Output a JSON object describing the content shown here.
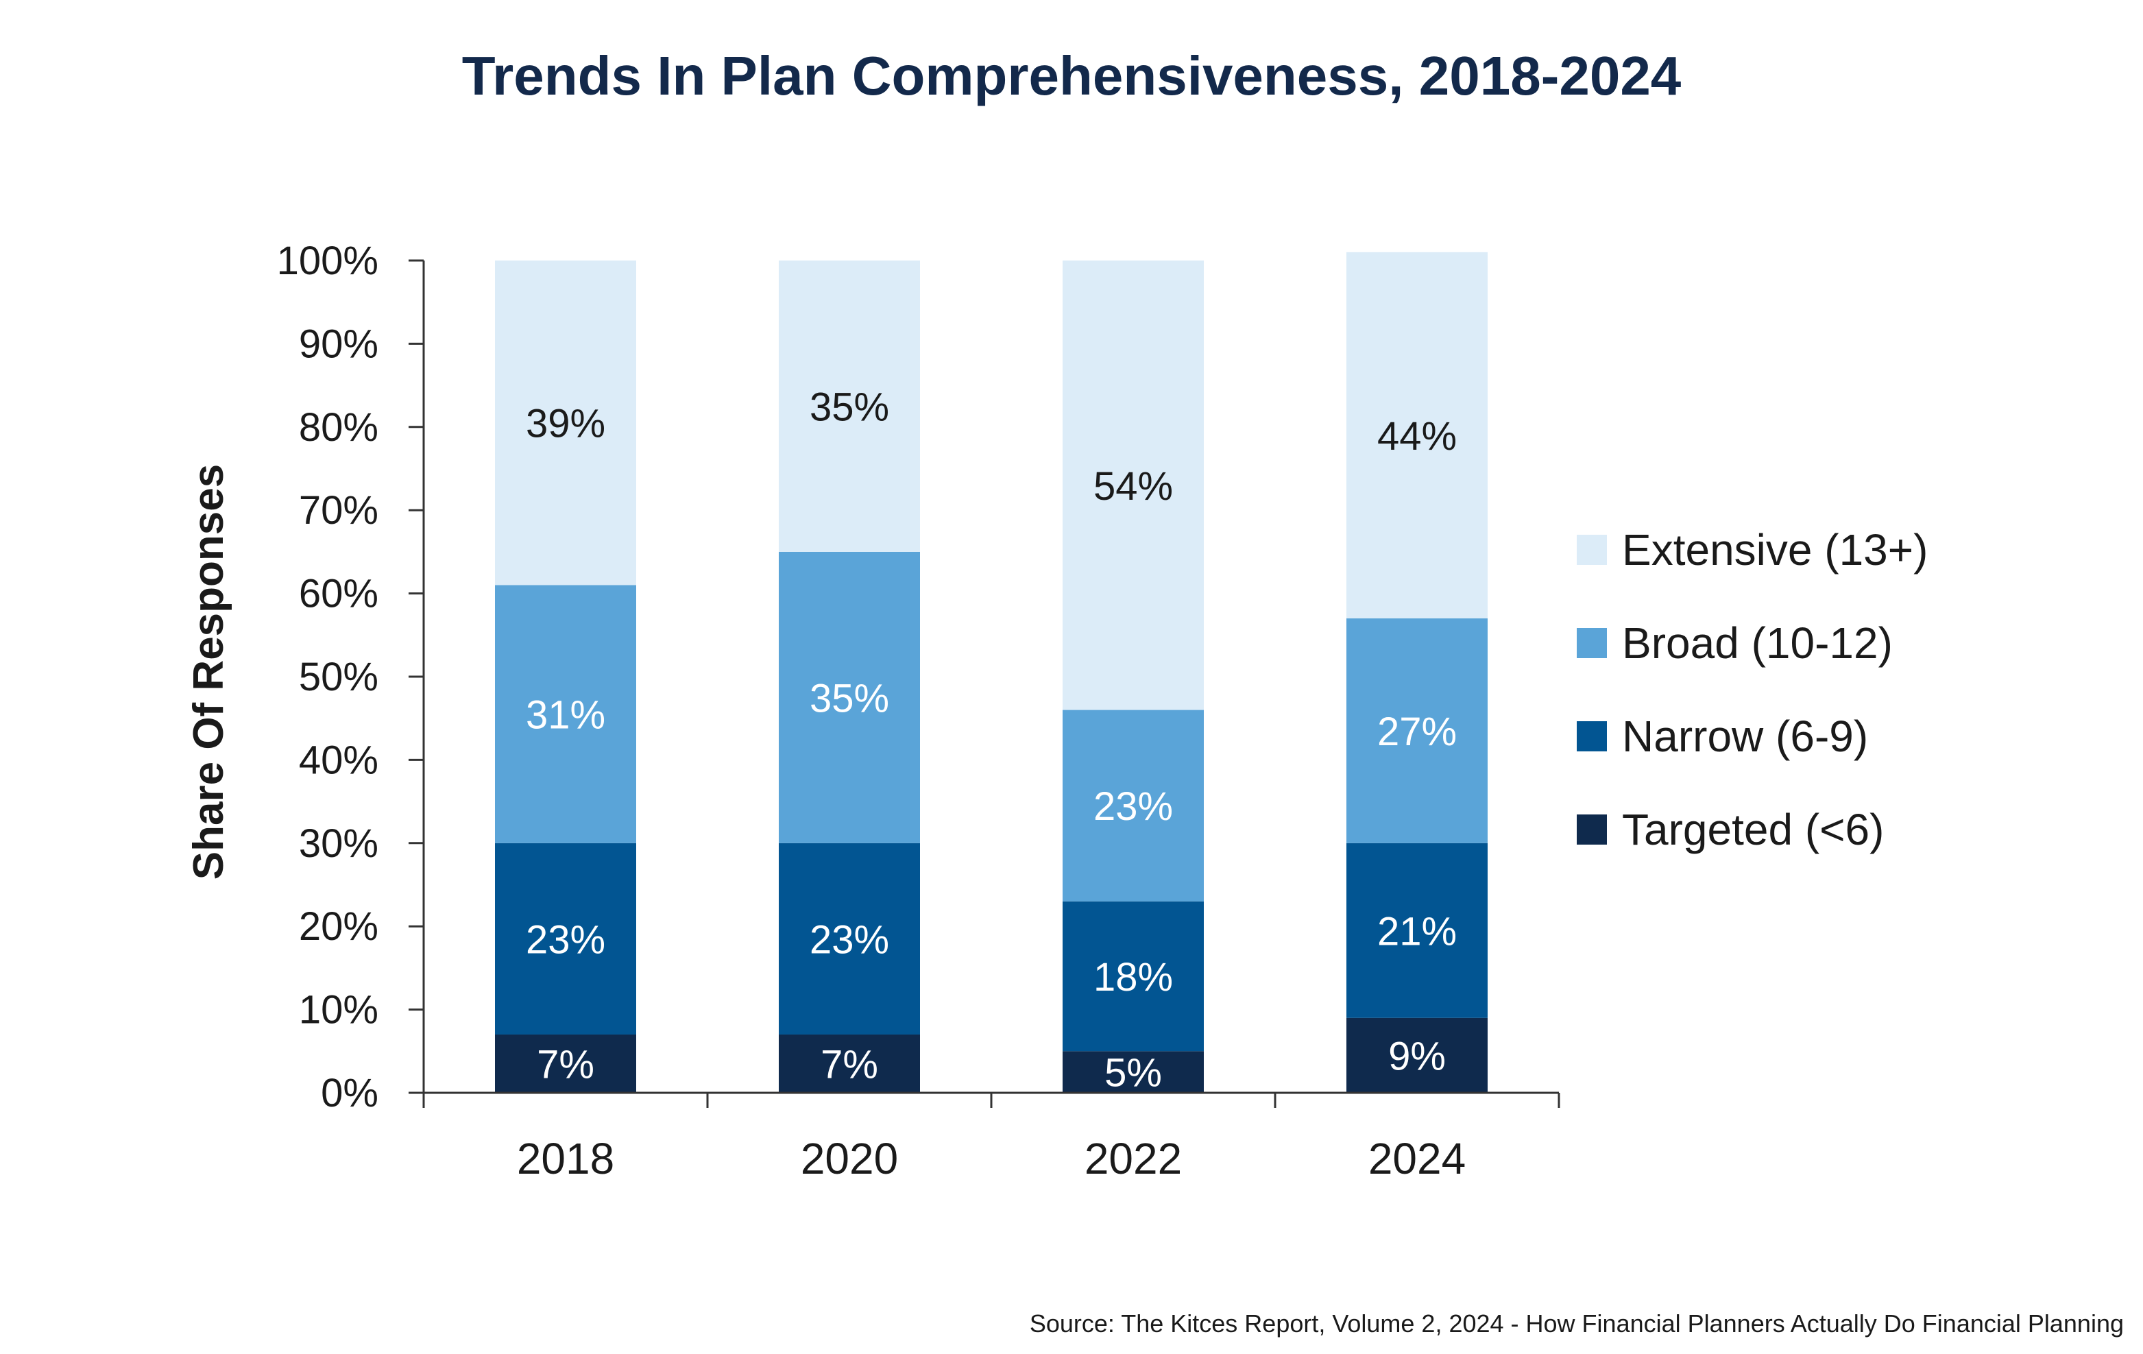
{
  "chart_data": {
    "type": "bar",
    "stacked": true,
    "title": "Trends In Plan Comprehensiveness, 2018-2024",
    "ylabel": "Share Of Responses",
    "xlabel": "",
    "categories": [
      "2018",
      "2020",
      "2022",
      "2024"
    ],
    "ylim": [
      0,
      100
    ],
    "yticks": [
      "0%",
      "10%",
      "20%",
      "30%",
      "40%",
      "50%",
      "60%",
      "70%",
      "80%",
      "90%",
      "100%"
    ],
    "grid": false,
    "legend_position": "right",
    "series": [
      {
        "name": "Targeted (<6)",
        "values": [
          7,
          7,
          5,
          9
        ],
        "labels": [
          "7%",
          "7%",
          "5%",
          "9%"
        ],
        "color": "#0f2a4d",
        "label_color": "#ffffff"
      },
      {
        "name": "Narrow (6-9)",
        "values": [
          23,
          23,
          18,
          21
        ],
        "labels": [
          "23%",
          "23%",
          "18%",
          "21%"
        ],
        "color": "#025592",
        "label_color": "#ffffff"
      },
      {
        "name": "Broad (10-12)",
        "values": [
          31,
          35,
          23,
          27
        ],
        "labels": [
          "31%",
          "35%",
          "23%",
          "27%"
        ],
        "color": "#5aa4d8",
        "label_color": "#ffffff"
      },
      {
        "name": "Extensive (13+)",
        "values": [
          39,
          35,
          54,
          44
        ],
        "labels": [
          "39%",
          "35%",
          "54%",
          "44%"
        ],
        "color": "#dcecf8",
        "label_color": "#1a1a1a"
      }
    ],
    "source": "Source: The Kitces Report, Volume 2, 2024 - How Financial Planners Actually Do Financial Planning"
  }
}
